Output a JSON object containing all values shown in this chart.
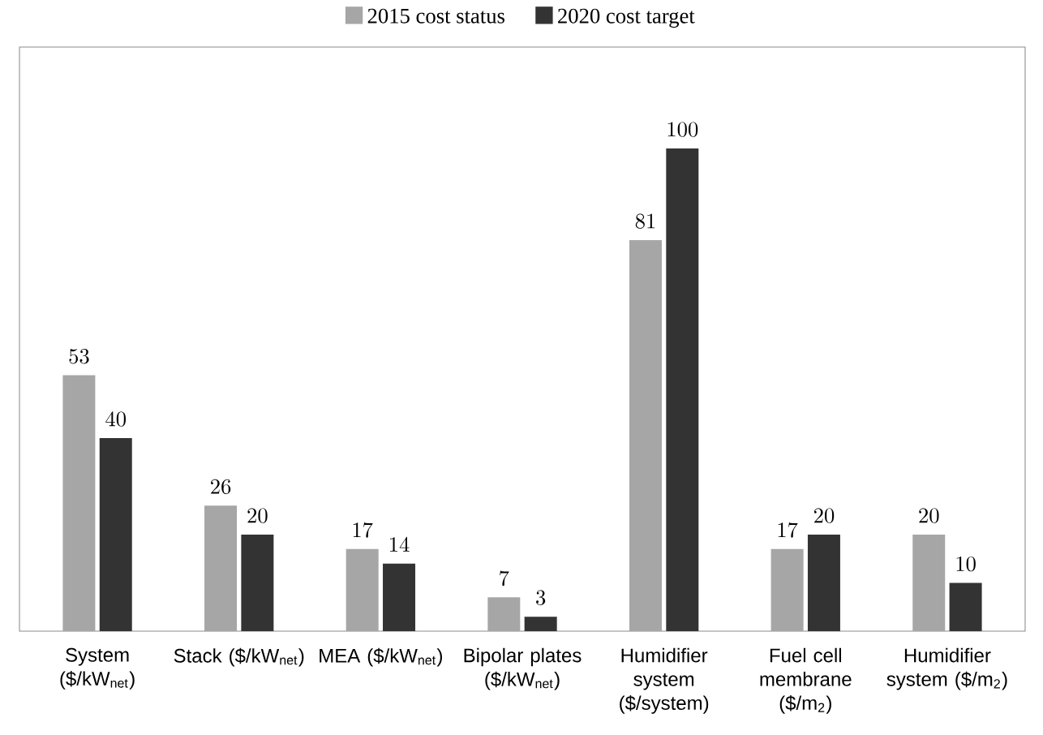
{
  "chart_data": {
    "type": "bar",
    "categories": [
      "System ($/kW$_{net}$)",
      "Stack ($/kW$_{net}$)",
      "MEA ($/kW$_{net}$)",
      "Bipolar plates ($/kW$_{net}$)",
      "Humidifier system ($/system)",
      "Fuel cell membrane ($/m$_{2}$)",
      "Humidifier system ($/m$_{2}$)"
    ],
    "series": [
      {
        "name": "2015 cost status",
        "color": "#a6a6a6",
        "values": [
          53,
          26,
          17,
          7,
          81,
          17,
          20
        ]
      },
      {
        "name": "2020 cost target",
        "color": "#333333",
        "values": [
          40,
          20,
          14,
          3,
          100,
          20,
          10
        ]
      }
    ],
    "data_labels": true,
    "legend": "top"
  }
}
